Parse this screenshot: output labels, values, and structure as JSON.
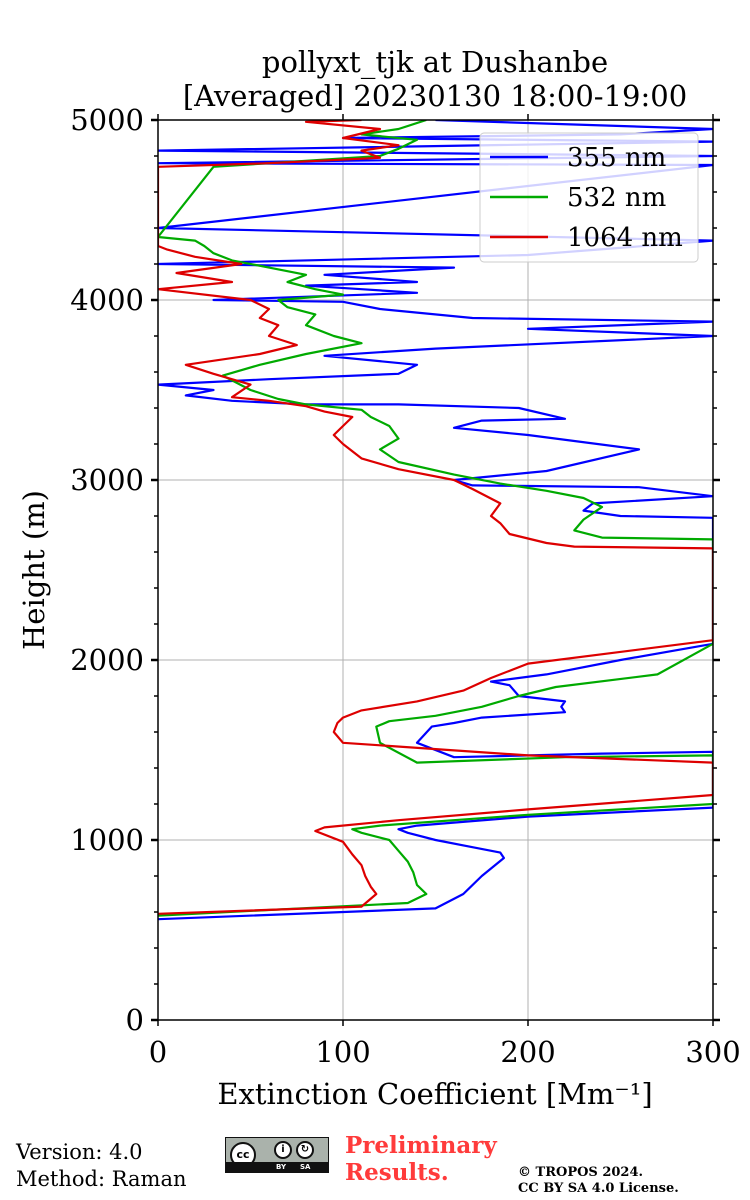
{
  "chart_data": {
    "type": "line",
    "title": "pollyxt_tjk at Dushanbe",
    "subtitle": "[Averaged] 20230130 18:00-19:00",
    "xlabel": "Extinction Coefficient [Mm⁻¹]",
    "ylabel": "Height (m)",
    "xlim": [
      0,
      300
    ],
    "ylim": [
      0,
      5000
    ],
    "xticks": [
      "0",
      "100",
      "200",
      "300"
    ],
    "yticks": [
      "0",
      "1000",
      "2000",
      "3000",
      "4000",
      "5000"
    ],
    "grid": true,
    "legend_position": "top-right",
    "series": [
      {
        "name": "355 nm",
        "color": "#0000ff",
        "points": [
          [
            0,
            560
          ],
          [
            150,
            620
          ],
          [
            165,
            700
          ],
          [
            175,
            800
          ],
          [
            187,
            900
          ],
          [
            185,
            930
          ],
          [
            170,
            960
          ],
          [
            150,
            1000
          ],
          [
            135,
            1040
          ],
          [
            130,
            1060
          ],
          [
            140,
            1080
          ],
          [
            200,
            1130
          ],
          [
            300,
            1180
          ],
          [
            300,
            1490
          ],
          [
            240,
            1480
          ],
          [
            160,
            1460
          ],
          [
            140,
            1540
          ],
          [
            148,
            1630
          ],
          [
            160,
            1650
          ],
          [
            175,
            1680
          ],
          [
            220,
            1710
          ],
          [
            218,
            1740
          ],
          [
            220,
            1770
          ],
          [
            195,
            1800
          ],
          [
            190,
            1860
          ],
          [
            180,
            1880
          ],
          [
            210,
            1920
          ],
          [
            250,
            2000
          ],
          [
            300,
            2090
          ],
          [
            300,
            2790
          ],
          [
            250,
            2800
          ],
          [
            230,
            2830
          ],
          [
            235,
            2870
          ],
          [
            300,
            2910
          ],
          [
            260,
            2960
          ],
          [
            170,
            2970
          ],
          [
            160,
            3000
          ],
          [
            210,
            3050
          ],
          [
            260,
            3170
          ],
          [
            200,
            3250
          ],
          [
            160,
            3290
          ],
          [
            175,
            3330
          ],
          [
            220,
            3340
          ],
          [
            195,
            3400
          ],
          [
            130,
            3420
          ],
          [
            80,
            3420
          ],
          [
            40,
            3440
          ],
          [
            15,
            3470
          ],
          [
            30,
            3500
          ],
          [
            0,
            3530
          ],
          [
            60,
            3560
          ],
          [
            130,
            3590
          ],
          [
            140,
            3640
          ],
          [
            90,
            3690
          ],
          [
            150,
            3730
          ],
          [
            300,
            3800
          ],
          [
            200,
            3840
          ],
          [
            300,
            3880
          ],
          [
            170,
            3900
          ],
          [
            120,
            3950
          ],
          [
            100,
            3990
          ],
          [
            30,
            4000
          ],
          [
            140,
            4040
          ],
          [
            110,
            4060
          ],
          [
            80,
            4080
          ],
          [
            140,
            4100
          ],
          [
            90,
            4140
          ],
          [
            160,
            4180
          ],
          [
            0,
            4200
          ],
          [
            200,
            4250
          ],
          [
            300,
            4330
          ],
          [
            0,
            4400
          ],
          [
            300,
            4750
          ],
          [
            0,
            4760
          ],
          [
            300,
            4800
          ],
          [
            0,
            4830
          ],
          [
            300,
            4880
          ],
          [
            100,
            4900
          ],
          [
            250,
            4920
          ],
          [
            300,
            4950
          ],
          [
            150,
            5000
          ]
        ]
      },
      {
        "name": "532 nm",
        "color": "#00aa00",
        "points": [
          [
            0,
            580
          ],
          [
            135,
            650
          ],
          [
            145,
            700
          ],
          [
            140,
            750
          ],
          [
            138,
            820
          ],
          [
            135,
            880
          ],
          [
            130,
            940
          ],
          [
            125,
            1000
          ],
          [
            110,
            1040
          ],
          [
            105,
            1060
          ],
          [
            120,
            1080
          ],
          [
            200,
            1140
          ],
          [
            300,
            1200
          ],
          [
            300,
            1470
          ],
          [
            220,
            1460
          ],
          [
            140,
            1430
          ],
          [
            120,
            1540
          ],
          [
            118,
            1630
          ],
          [
            125,
            1660
          ],
          [
            150,
            1690
          ],
          [
            175,
            1740
          ],
          [
            195,
            1800
          ],
          [
            215,
            1850
          ],
          [
            270,
            1920
          ],
          [
            300,
            2090
          ],
          [
            300,
            2670
          ],
          [
            240,
            2680
          ],
          [
            225,
            2720
          ],
          [
            230,
            2780
          ],
          [
            240,
            2850
          ],
          [
            230,
            2900
          ],
          [
            210,
            2940
          ],
          [
            185,
            2980
          ],
          [
            160,
            3030
          ],
          [
            130,
            3100
          ],
          [
            120,
            3170
          ],
          [
            130,
            3230
          ],
          [
            125,
            3300
          ],
          [
            115,
            3350
          ],
          [
            110,
            3390
          ],
          [
            80,
            3420
          ],
          [
            65,
            3450
          ],
          [
            50,
            3500
          ],
          [
            35,
            3580
          ],
          [
            55,
            3640
          ],
          [
            80,
            3700
          ],
          [
            110,
            3760
          ],
          [
            95,
            3800
          ],
          [
            80,
            3860
          ],
          [
            85,
            3920
          ],
          [
            70,
            3960
          ],
          [
            65,
            4000
          ],
          [
            100,
            4030
          ],
          [
            85,
            4060
          ],
          [
            70,
            4100
          ],
          [
            80,
            4140
          ],
          [
            60,
            4180
          ],
          [
            40,
            4220
          ],
          [
            30,
            4260
          ],
          [
            25,
            4300
          ],
          [
            20,
            4330
          ],
          [
            0,
            4350
          ],
          [
            30,
            4740
          ],
          [
            120,
            4800
          ],
          [
            130,
            4840
          ],
          [
            140,
            4890
          ],
          [
            110,
            4920
          ],
          [
            130,
            4950
          ],
          [
            145,
            5000
          ]
        ]
      },
      {
        "name": "1064 nm",
        "color": "#dd0000",
        "points": [
          [
            0,
            590
          ],
          [
            110,
            630
          ],
          [
            118,
            700
          ],
          [
            115,
            740
          ],
          [
            112,
            800
          ],
          [
            110,
            860
          ],
          [
            105,
            920
          ],
          [
            100,
            990
          ],
          [
            85,
            1050
          ],
          [
            90,
            1070
          ],
          [
            130,
            1110
          ],
          [
            200,
            1170
          ],
          [
            300,
            1250
          ],
          [
            300,
            1430
          ],
          [
            200,
            1470
          ],
          [
            100,
            1540
          ],
          [
            95,
            1600
          ],
          [
            97,
            1650
          ],
          [
            100,
            1680
          ],
          [
            110,
            1720
          ],
          [
            140,
            1770
          ],
          [
            165,
            1830
          ],
          [
            180,
            1900
          ],
          [
            200,
            1980
          ],
          [
            300,
            2110
          ],
          [
            300,
            2620
          ],
          [
            225,
            2630
          ],
          [
            210,
            2650
          ],
          [
            190,
            2700
          ],
          [
            185,
            2760
          ],
          [
            180,
            2800
          ],
          [
            185,
            2870
          ],
          [
            170,
            2950
          ],
          [
            160,
            3000
          ],
          [
            130,
            3060
          ],
          [
            110,
            3120
          ],
          [
            100,
            3200
          ],
          [
            95,
            3250
          ],
          [
            100,
            3300
          ],
          [
            105,
            3350
          ],
          [
            90,
            3380
          ],
          [
            80,
            3410
          ],
          [
            60,
            3440
          ],
          [
            40,
            3460
          ],
          [
            50,
            3530
          ],
          [
            30,
            3590
          ],
          [
            15,
            3640
          ],
          [
            55,
            3700
          ],
          [
            75,
            3750
          ],
          [
            60,
            3800
          ],
          [
            65,
            3860
          ],
          [
            55,
            3900
          ],
          [
            60,
            3950
          ],
          [
            50,
            4000
          ],
          [
            0,
            4060
          ],
          [
            40,
            4100
          ],
          [
            10,
            4150
          ],
          [
            45,
            4200
          ],
          [
            20,
            4240
          ],
          [
            5,
            4280
          ],
          [
            0,
            4300
          ],
          [
            0,
            4740
          ],
          [
            60,
            4760
          ],
          [
            120,
            4790
          ],
          [
            110,
            4830
          ],
          [
            130,
            4860
          ],
          [
            100,
            4900
          ],
          [
            120,
            4950
          ],
          [
            80,
            4990
          ],
          [
            110,
            5000
          ]
        ]
      }
    ]
  },
  "footer": {
    "version": "Version: 4.0",
    "method": "Method: Raman",
    "preliminary_line1": "Preliminary",
    "preliminary_line2": "Results.",
    "copyright_line1": "© TROPOS 2024.",
    "copyright_line2": "CC BY SA 4.0 License.",
    "license_badge": {
      "cc": "cc",
      "by": "BY",
      "sa": "SA"
    }
  }
}
